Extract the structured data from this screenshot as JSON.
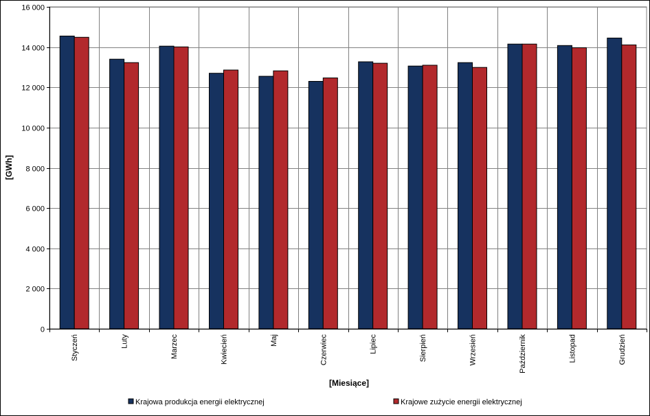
{
  "chart_data": {
    "type": "bar",
    "title": "",
    "xlabel": "[Miesiące]",
    "ylabel": "[GWh]",
    "ylim": [
      0,
      16000
    ],
    "ytick_step": 2000,
    "ytick_labels": [
      "0",
      "2 000",
      "4 000",
      "6 000",
      "8 000",
      "10 000",
      "12 000",
      "14 000",
      "16 000"
    ],
    "grid": true,
    "legend_position": "bottom",
    "categories": [
      "Styczeń",
      "Luty",
      "Marzec",
      "Kwiecień",
      "Maj",
      "Czerwiec",
      "Lipiec",
      "Sierpień",
      "Wrzesień",
      "Październik",
      "Listopad",
      "Grudzień"
    ],
    "series": [
      {
        "name": "Krajowa produkcja energii elektrycznej",
        "color": "#16325f",
        "values": [
          14550,
          13400,
          14050,
          12700,
          12550,
          12300,
          13270,
          13060,
          13230,
          14150,
          14080,
          14450
        ]
      },
      {
        "name": "Krajowe zużycie energii elektrycznej",
        "color": "#b2292c",
        "values": [
          14490,
          13230,
          14010,
          12860,
          12820,
          12470,
          13200,
          13100,
          12990,
          14150,
          13970,
          14110
        ]
      }
    ]
  }
}
